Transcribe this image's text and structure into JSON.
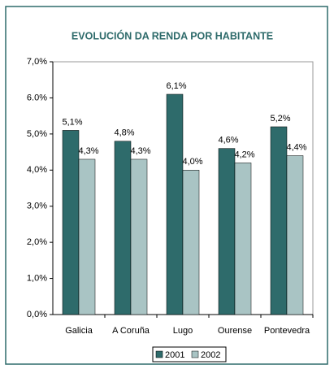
{
  "chart_data": {
    "type": "bar",
    "title": "EVOLUCIÓN DA RENDA POR HABITANTE",
    "categories": [
      "Galicia",
      "A Coruña",
      "Lugo",
      "Ourense",
      "Pontevedra"
    ],
    "series": [
      {
        "name": "2001",
        "color": "#2e6b6b",
        "values": [
          5.1,
          4.8,
          6.1,
          4.6,
          5.2
        ],
        "value_labels": [
          "5,1%",
          "4,8%",
          "6,1%",
          "4,6%",
          "5,2%"
        ]
      },
      {
        "name": "2002",
        "color": "#a9c4c4",
        "values": [
          4.3,
          4.3,
          4.0,
          4.2,
          4.4
        ],
        "value_labels": [
          "4,3%",
          "4,3%",
          "4,0%",
          "4,2%",
          "4,4%"
        ]
      }
    ],
    "ylim": [
      0,
      7
    ],
    "yticks": [
      {
        "value": 0,
        "label": "0,0%"
      },
      {
        "value": 1,
        "label": "1,0%"
      },
      {
        "value": 2,
        "label": "2,0%"
      },
      {
        "value": 3,
        "label": "3,0%"
      },
      {
        "value": 4,
        "label": "4,0%"
      },
      {
        "value": 5,
        "label": "5,0%"
      },
      {
        "value": 6,
        "label": "6.0%"
      },
      {
        "value": 7,
        "label": "7,0%"
      }
    ],
    "legend": "bottom"
  }
}
